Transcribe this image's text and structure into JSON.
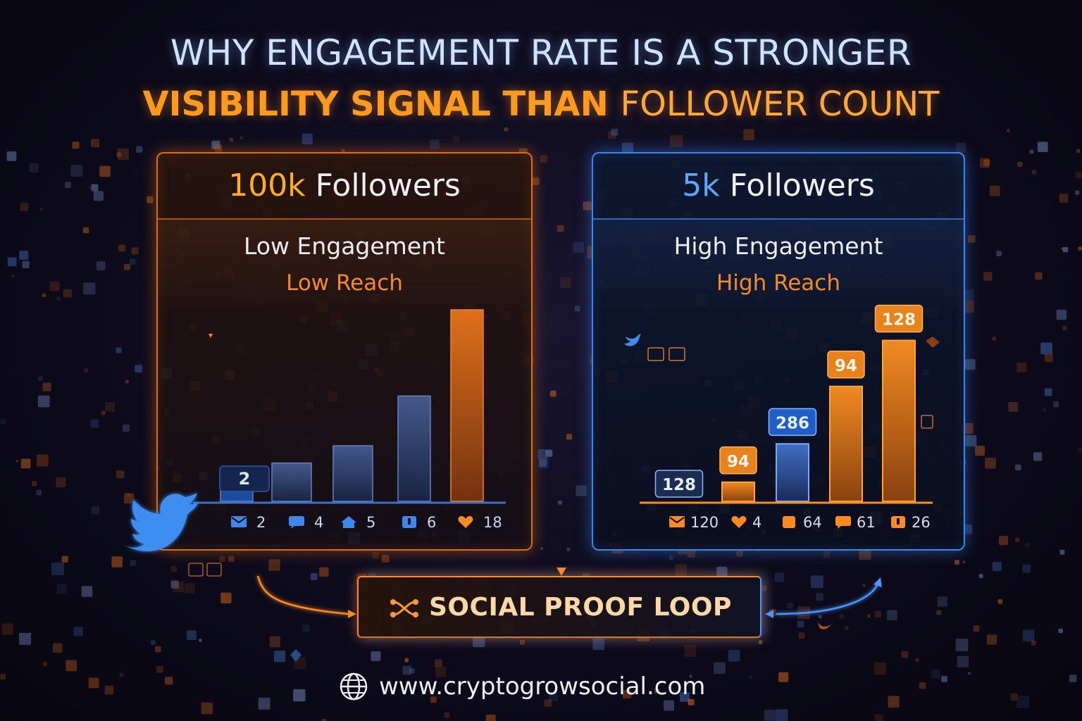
{
  "title": {
    "line1": "WHY ENGAGEMENT RATE IS A STRONGER",
    "line2_bold": "VISIBILITY SIGNAL THAN",
    "line2_normal": "FOLLOWER COUNT"
  },
  "left_panel": {
    "count": "100k",
    "heading": "Followers",
    "engagement": "Low Engagement",
    "reach": "Low Reach",
    "bar_value_label": "2",
    "bars": [
      0.1,
      0.2,
      0.29,
      0.55,
      1.0
    ],
    "metrics": [
      {
        "icon": "envelope-icon",
        "value": "2"
      },
      {
        "icon": "comment-icon",
        "value": "4"
      },
      {
        "icon": "home-icon",
        "value": "5"
      },
      {
        "icon": "bookmark-icon",
        "value": "6"
      },
      {
        "icon": "heart-icon",
        "value": "18"
      }
    ]
  },
  "right_panel": {
    "count": "5k",
    "heading": "Followers",
    "engagement": "High Engagement",
    "reach": "High Reach",
    "bars": [
      {
        "label": "128",
        "height": 0.0
      },
      {
        "label": "94",
        "height": 0.1
      },
      {
        "label": "286",
        "height": 0.3
      },
      {
        "label": "94",
        "height": 0.6
      },
      {
        "label": "128",
        "height": 0.84
      }
    ],
    "metrics": [
      {
        "icon": "envelope-icon",
        "value": "120"
      },
      {
        "icon": "heart-icon",
        "value": "4"
      },
      {
        "icon": "square-icon",
        "value": "64"
      },
      {
        "icon": "comment-icon",
        "value": "61"
      },
      {
        "icon": "bookmark-icon",
        "value": "26"
      }
    ]
  },
  "loop": {
    "label": "SOCIAL PROOF LOOP"
  },
  "footer": {
    "url": "www.cryptogrowsocial.com"
  },
  "colors": {
    "orange": "#ff8a20",
    "blue": "#4c94ff",
    "dark_blue_bar": "#1c4fa8"
  }
}
